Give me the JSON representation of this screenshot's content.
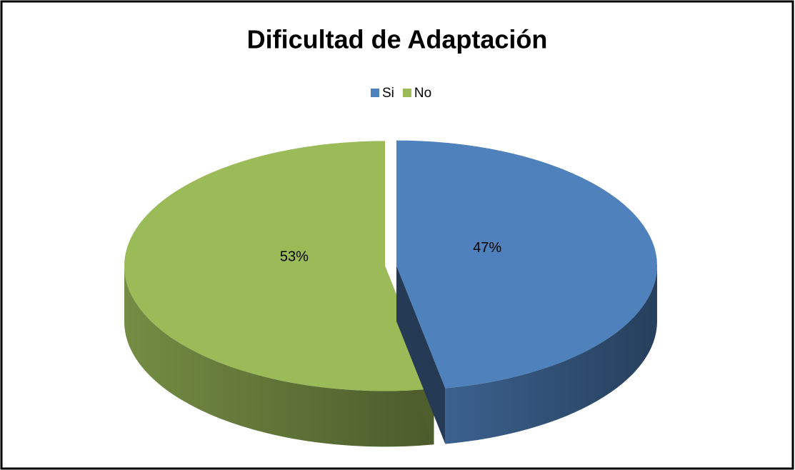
{
  "chart_data": {
    "type": "pie",
    "title": "Dificultad de Adaptación",
    "categories": [
      "Si",
      "No"
    ],
    "values": [
      47,
      53
    ],
    "value_labels": [
      "47%",
      "53%"
    ],
    "colors": [
      "#4f81bd",
      "#9bbb59"
    ],
    "legend": "top"
  }
}
